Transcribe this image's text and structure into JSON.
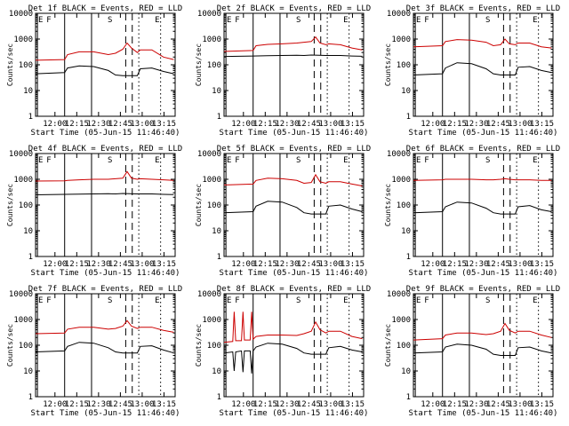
{
  "figure": {
    "x_ticks": [
      "12:00",
      "12:15",
      "12:30",
      "12:45",
      "13:00",
      "13:15"
    ],
    "y_ticks": [
      "1",
      "10",
      "100",
      "1000",
      "10000"
    ],
    "ylabel": "Counts/sec",
    "xlabel": "Start Time (05-Jun-15 11:46:40)",
    "markers": [
      "E",
      "F",
      "S",
      "E"
    ],
    "colors": {
      "events": "#000000",
      "lld": "#cc0000",
      "axes": "#000000"
    }
  },
  "chart_data": [
    {
      "type": "line",
      "title": "Det 1f BLACK = Events, RED = LLD",
      "xlabel": "Start Time (05-Jun-15 11:46:40)",
      "ylabel": "Counts/sec",
      "yscale": "log",
      "ylim": [
        1,
        10000
      ],
      "xlim": [
        "11:46:40",
        "13:22"
      ],
      "series": [
        {
          "name": "Events",
          "color": "#000000",
          "time_min": [
            0,
            20,
            22,
            30,
            40,
            50,
            55,
            60,
            70,
            72,
            80,
            88,
            95
          ],
          "values": [
            45,
            50,
            75,
            90,
            85,
            60,
            40,
            38,
            38,
            70,
            75,
            55,
            45
          ]
        },
        {
          "name": "LLD",
          "color": "#cc0000",
          "time_min": [
            0,
            20,
            22,
            30,
            40,
            50,
            55,
            60,
            63,
            66,
            70,
            72,
            80,
            88,
            95
          ],
          "values": [
            150,
            160,
            250,
            320,
            320,
            250,
            280,
            400,
            700,
            450,
            300,
            380,
            380,
            200,
            160
          ]
        }
      ]
    },
    {
      "type": "line",
      "title": "Det 2f BLACK = Events, RED = LLD",
      "xlabel": "Start Time (05-Jun-15 11:46:40)",
      "ylabel": "Counts/sec",
      "yscale": "log",
      "ylim": [
        1,
        10000
      ],
      "xlim": [
        "11:46:40",
        "13:22"
      ],
      "series": [
        {
          "name": "Events",
          "color": "#000000",
          "time_min": [
            0,
            10,
            20,
            30,
            40,
            50,
            55,
            60,
            70,
            80,
            88,
            95
          ],
          "values": [
            210,
            215,
            220,
            225,
            230,
            235,
            230,
            240,
            230,
            230,
            220,
            215
          ]
        },
        {
          "name": "LLD",
          "color": "#cc0000",
          "time_min": [
            0,
            20,
            22,
            30,
            40,
            50,
            55,
            60,
            63,
            66,
            70,
            72,
            80,
            88,
            95
          ],
          "values": [
            330,
            360,
            550,
            620,
            650,
            700,
            750,
            800,
            1200,
            700,
            600,
            650,
            600,
            450,
            380
          ]
        }
      ]
    },
    {
      "type": "line",
      "title": "Det 3f BLACK = Events, RED = LLD",
      "xlabel": "Start Time (05-Jun-15 11:46:40)",
      "ylabel": "Counts/sec",
      "yscale": "log",
      "ylim": [
        1,
        10000
      ],
      "xlim": [
        "11:46:40",
        "13:22"
      ],
      "series": [
        {
          "name": "Events",
          "color": "#000000",
          "time_min": [
            0,
            20,
            22,
            30,
            40,
            50,
            55,
            60,
            70,
            72,
            80,
            88,
            95
          ],
          "values": [
            40,
            45,
            75,
            120,
            110,
            70,
            45,
            40,
            40,
            80,
            85,
            60,
            50
          ]
        },
        {
          "name": "LLD",
          "color": "#cc0000",
          "time_min": [
            0,
            20,
            22,
            30,
            40,
            50,
            55,
            60,
            63,
            66,
            70,
            72,
            80,
            88,
            95
          ],
          "values": [
            500,
            550,
            800,
            950,
            900,
            750,
            550,
            600,
            1000,
            650,
            600,
            700,
            700,
            500,
            450
          ]
        }
      ]
    },
    {
      "type": "line",
      "title": "Det 4f BLACK = Events, RED = LLD",
      "xlabel": "Start Time (05-Jun-15 11:46:40)",
      "ylabel": "Counts/sec",
      "yscale": "log",
      "ylim": [
        1,
        10000
      ],
      "xlim": [
        "11:46:40",
        "13:22"
      ],
      "series": [
        {
          "name": "Events",
          "color": "#000000",
          "time_min": [
            0,
            10,
            20,
            30,
            40,
            50,
            55,
            60,
            70,
            80,
            88,
            95
          ],
          "values": [
            250,
            255,
            260,
            265,
            270,
            275,
            270,
            280,
            270,
            270,
            260,
            255
          ]
        },
        {
          "name": "LLD",
          "color": "#cc0000",
          "time_min": [
            0,
            20,
            22,
            30,
            40,
            50,
            55,
            60,
            63,
            66,
            70,
            72,
            80,
            88,
            95
          ],
          "values": [
            850,
            870,
            900,
            950,
            1000,
            1000,
            1050,
            1100,
            2000,
            1100,
            1000,
            1050,
            1000,
            950,
            900
          ]
        }
      ]
    },
    {
      "type": "line",
      "title": "Det 5f BLACK = Events, RED = LLD",
      "xlabel": "Start Time (05-Jun-15 11:46:40)",
      "ylabel": "Counts/sec",
      "yscale": "log",
      "ylim": [
        1,
        10000
      ],
      "xlim": [
        "11:46:40",
        "13:22"
      ],
      "series": [
        {
          "name": "Events",
          "color": "#000000",
          "time_min": [
            0,
            20,
            22,
            30,
            40,
            50,
            55,
            60,
            70,
            72,
            80,
            88,
            95
          ],
          "values": [
            50,
            55,
            90,
            140,
            130,
            80,
            50,
            45,
            45,
            90,
            100,
            70,
            55
          ]
        },
        {
          "name": "LLD",
          "color": "#cc0000",
          "time_min": [
            0,
            20,
            22,
            30,
            40,
            50,
            55,
            60,
            63,
            66,
            70,
            72,
            80,
            88,
            95
          ],
          "values": [
            600,
            650,
            900,
            1100,
            1050,
            900,
            700,
            750,
            1500,
            800,
            700,
            800,
            800,
            650,
            550
          ]
        }
      ]
    },
    {
      "type": "line",
      "title": "Det 6f BLACK = Events, RED = LLD",
      "xlabel": "Start Time (05-Jun-15 11:46:40)",
      "ylabel": "Counts/sec",
      "yscale": "log",
      "ylim": [
        1,
        10000
      ],
      "xlim": [
        "11:46:40",
        "13:22"
      ],
      "series": [
        {
          "name": "Events",
          "color": "#000000",
          "time_min": [
            0,
            20,
            22,
            30,
            40,
            50,
            55,
            60,
            70,
            72,
            80,
            88,
            95
          ],
          "values": [
            50,
            55,
            85,
            130,
            120,
            75,
            50,
            45,
            45,
            85,
            95,
            65,
            55
          ]
        },
        {
          "name": "LLD",
          "color": "#cc0000",
          "time_min": [
            0,
            20,
            22,
            30,
            40,
            50,
            55,
            60,
            63,
            66,
            70,
            72,
            80,
            88,
            95
          ],
          "values": [
            900,
            950,
            1000,
            1000,
            1000,
            950,
            950,
            1000,
            1050,
            1000,
            950,
            950,
            950,
            900,
            900
          ]
        }
      ]
    },
    {
      "type": "line",
      "title": "Det 7f BLACK = Events, RED = LLD",
      "xlabel": "Start Time (05-Jun-15 11:46:40)",
      "ylabel": "Counts/sec",
      "yscale": "log",
      "ylim": [
        1,
        10000
      ],
      "xlim": [
        "11:46:40",
        "13:22"
      ],
      "series": [
        {
          "name": "Events",
          "color": "#000000",
          "time_min": [
            0,
            20,
            22,
            30,
            40,
            50,
            55,
            60,
            70,
            72,
            80,
            88,
            95
          ],
          "values": [
            55,
            60,
            90,
            130,
            120,
            80,
            55,
            50,
            50,
            90,
            95,
            65,
            50
          ]
        },
        {
          "name": "LLD",
          "color": "#cc0000",
          "time_min": [
            0,
            20,
            22,
            30,
            40,
            50,
            55,
            60,
            63,
            66,
            70,
            72,
            80,
            88,
            95
          ],
          "values": [
            280,
            300,
            420,
            500,
            500,
            420,
            450,
            550,
            900,
            550,
            450,
            500,
            500,
            380,
            320
          ]
        }
      ]
    },
    {
      "type": "line",
      "title": "Det 8f BLACK = Events, RED = LLD",
      "xlabel": "Start Time (05-Jun-15 11:46:40)",
      "ylabel": "Counts/sec",
      "yscale": "log",
      "ylim": [
        1,
        10000
      ],
      "xlim": [
        "11:46:40",
        "13:22"
      ],
      "series": [
        {
          "name": "Events",
          "color": "#000000",
          "time_min": [
            0,
            6,
            7,
            8,
            12,
            13,
            14,
            18,
            19,
            20,
            22,
            30,
            40,
            50,
            55,
            60,
            70,
            72,
            80,
            88,
            95
          ],
          "values": [
            50,
            55,
            10,
            55,
            60,
            9,
            60,
            60,
            8,
            60,
            85,
            120,
            110,
            75,
            50,
            45,
            45,
            80,
            90,
            65,
            55
          ]
        },
        {
          "name": "LLD",
          "color": "#cc0000",
          "time_min": [
            0,
            6,
            7,
            8,
            12,
            13,
            14,
            18,
            19,
            20,
            22,
            30,
            40,
            50,
            55,
            60,
            63,
            66,
            70,
            72,
            80,
            88,
            95
          ],
          "values": [
            130,
            140,
            2000,
            150,
            150,
            2000,
            160,
            160,
            2000,
            170,
            220,
            250,
            250,
            240,
            280,
            350,
            800,
            400,
            300,
            350,
            350,
            220,
            180
          ]
        }
      ]
    },
    {
      "type": "line",
      "title": "Det 9f BLACK = Events, RED = LLD",
      "xlabel": "Start Time (05-Jun-15 11:46:40)",
      "ylabel": "Counts/sec",
      "yscale": "log",
      "ylim": [
        1,
        10000
      ],
      "xlim": [
        "11:46:40",
        "13:22"
      ],
      "series": [
        {
          "name": "Events",
          "color": "#000000",
          "time_min": [
            0,
            20,
            22,
            30,
            40,
            50,
            55,
            60,
            70,
            72,
            80,
            88,
            95
          ],
          "values": [
            50,
            55,
            85,
            110,
            100,
            70,
            45,
            40,
            40,
            80,
            85,
            60,
            50
          ]
        },
        {
          "name": "LLD",
          "color": "#cc0000",
          "time_min": [
            0,
            20,
            22,
            30,
            40,
            50,
            55,
            60,
            63,
            66,
            70,
            72,
            80,
            88,
            95
          ],
          "values": [
            160,
            180,
            250,
            300,
            300,
            260,
            280,
            350,
            700,
            380,
            300,
            350,
            350,
            250,
            200
          ]
        }
      ]
    }
  ]
}
